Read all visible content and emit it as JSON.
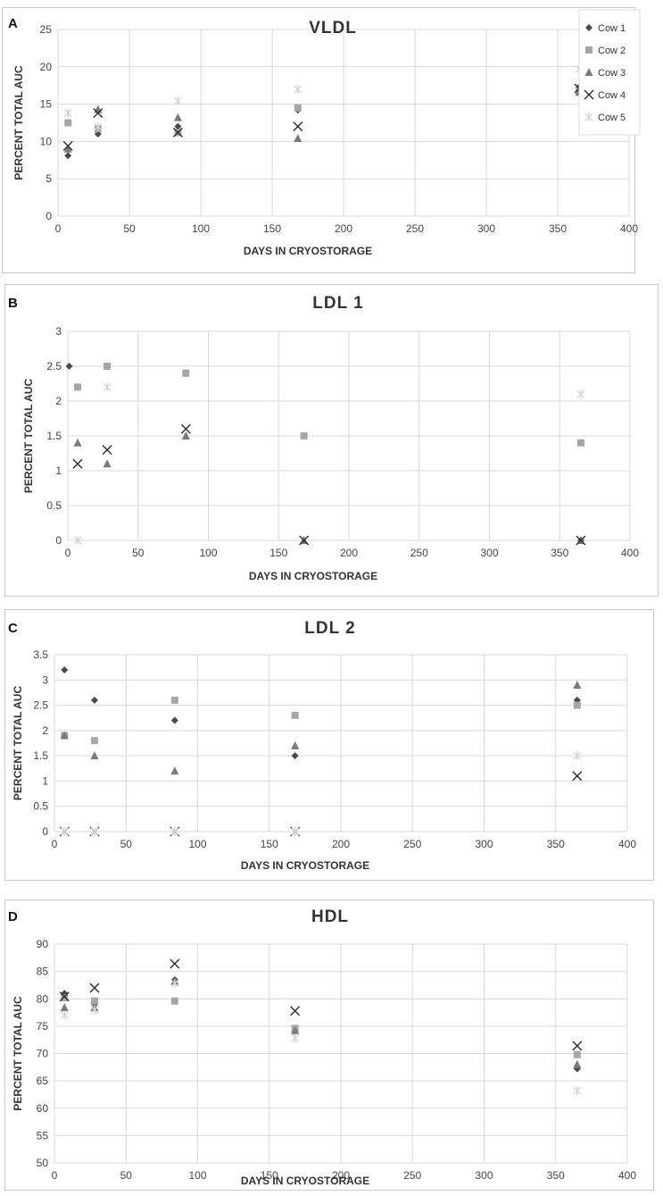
{
  "panels": {
    "a": "A",
    "b": "B",
    "c": "C",
    "d": "D"
  },
  "legend": {
    "entries": [
      "Cow 1",
      "Cow 2",
      "Cow 3",
      "Cow 4",
      "Cow 5"
    ]
  },
  "colors": {
    "cow1": "#4a4a4a",
    "cow2": "#a6a6a6",
    "cow3": "#7a7a7a",
    "cow4": "#2b2b2b",
    "cow5": "#d4d4d4",
    "grid": "#d9d9d9",
    "axis_text": "#444444"
  },
  "chart_data": [
    {
      "type": "scatter",
      "title": "VLDL",
      "xlabel": "DAYS IN CRYOSTORAGE",
      "ylabel": "PERCENT TOTAL AUC",
      "xlim": [
        0,
        400
      ],
      "ylim": [
        0,
        25
      ],
      "xticks": [
        0,
        50,
        100,
        150,
        200,
        250,
        300,
        350,
        400
      ],
      "yticks": [
        0,
        5,
        10,
        15,
        20,
        25
      ],
      "xtick_labels": [
        "0",
        "50",
        "100",
        "150",
        "200",
        "250",
        "300",
        "350",
        "400"
      ],
      "ytick_labels": [
        "0",
        "5",
        "10",
        "15",
        "20",
        "25"
      ],
      "legend": true,
      "series": [
        {
          "name": "Cow 1",
          "marker": "diamond",
          "points": [
            [
              7,
              8.1
            ],
            [
              28,
              11.0
            ],
            [
              84,
              12.0
            ],
            [
              168,
              14.2
            ],
            [
              365,
              17.3
            ]
          ]
        },
        {
          "name": "Cow 2",
          "marker": "square",
          "points": [
            [
              7,
              12.5
            ],
            [
              28,
              11.7
            ],
            [
              84,
              11.2
            ],
            [
              168,
              14.5
            ],
            [
              365,
              16.8
            ]
          ]
        },
        {
          "name": "Cow 3",
          "marker": "triangle",
          "points": [
            [
              7,
              9.0
            ],
            [
              28,
              14.3
            ],
            [
              84,
              13.2
            ],
            [
              168,
              10.4
            ],
            [
              365,
              16.6
            ]
          ]
        },
        {
          "name": "Cow 4",
          "marker": "x",
          "points": [
            [
              7,
              9.4
            ],
            [
              28,
              13.8
            ],
            [
              84,
              11.2
            ],
            [
              168,
              12.0
            ],
            [
              365,
              17.1
            ]
          ]
        },
        {
          "name": "Cow 5",
          "marker": "star",
          "points": [
            [
              7,
              13.8
            ],
            [
              28,
              12.0
            ],
            [
              84,
              15.4
            ],
            [
              168,
              17.0
            ],
            [
              365,
              19.7
            ]
          ]
        }
      ]
    },
    {
      "type": "scatter",
      "title": "LDL 1",
      "xlabel": "DAYS IN CRYOSTORAGE",
      "ylabel": "PERCENT TOTAL AUC",
      "xlim": [
        0,
        400
      ],
      "ylim": [
        0,
        3
      ],
      "xticks": [
        0,
        50,
        100,
        150,
        200,
        250,
        300,
        350,
        400
      ],
      "yticks": [
        0,
        0.5,
        1,
        1.5,
        2,
        2.5,
        3
      ],
      "xtick_labels": [
        "0",
        "50",
        "100",
        "150",
        "200",
        "250",
        "300",
        "350",
        "400"
      ],
      "ytick_labels": [
        "0",
        "0.5",
        "1",
        "1.5",
        "2",
        "2.5",
        "3"
      ],
      "legend": false,
      "series": [
        {
          "name": "Cow 1",
          "marker": "diamond",
          "points": [
            [
              1,
              2.5
            ],
            [
              365,
              0
            ]
          ]
        },
        {
          "name": "Cow 2",
          "marker": "square",
          "points": [
            [
              7,
              2.2
            ],
            [
              28,
              2.5
            ],
            [
              84,
              2.4
            ],
            [
              168,
              1.5
            ],
            [
              365,
              1.4
            ]
          ]
        },
        {
          "name": "Cow 3",
          "marker": "triangle",
          "points": [
            [
              7,
              1.4
            ],
            [
              28,
              1.1
            ],
            [
              84,
              1.5
            ],
            [
              168,
              0
            ],
            [
              365,
              0
            ]
          ]
        },
        {
          "name": "Cow 4",
          "marker": "x",
          "points": [
            [
              7,
              1.1
            ],
            [
              28,
              1.3
            ],
            [
              84,
              1.6
            ],
            [
              168,
              0
            ],
            [
              365,
              0
            ]
          ]
        },
        {
          "name": "Cow 5",
          "marker": "star",
          "points": [
            [
              7,
              0
            ],
            [
              28,
              2.2
            ],
            [
              365,
              2.1
            ]
          ]
        }
      ]
    },
    {
      "type": "scatter",
      "title": "LDL 2",
      "xlabel": "DAYS IN CRYOSTORAGE",
      "ylabel": "PERCENT TOTAL AUC",
      "xlim": [
        0,
        400
      ],
      "ylim": [
        0,
        3.5
      ],
      "xticks": [
        0,
        50,
        100,
        150,
        200,
        250,
        300,
        350,
        400
      ],
      "yticks": [
        0,
        0.5,
        1,
        1.5,
        2,
        2.5,
        3,
        3.5
      ],
      "xtick_labels": [
        "0",
        "50",
        "100",
        "150",
        "200",
        "250",
        "300",
        "350",
        "400"
      ],
      "ytick_labels": [
        "0",
        "0.5",
        "1",
        "1.5",
        "2",
        "2.5",
        "3",
        "3.5"
      ],
      "legend": false,
      "series": [
        {
          "name": "Cow 1",
          "marker": "diamond",
          "points": [
            [
              7,
              3.2
            ],
            [
              28,
              2.6
            ],
            [
              84,
              2.2
            ],
            [
              168,
              1.5
            ],
            [
              365,
              2.6
            ]
          ]
        },
        {
          "name": "Cow 2",
          "marker": "square",
          "points": [
            [
              7,
              1.9
            ],
            [
              28,
              1.8
            ],
            [
              84,
              2.6
            ],
            [
              168,
              2.3
            ],
            [
              365,
              2.5
            ]
          ]
        },
        {
          "name": "Cow 3",
          "marker": "triangle",
          "points": [
            [
              7,
              1.9
            ],
            [
              28,
              1.5
            ],
            [
              84,
              1.2
            ],
            [
              168,
              1.7
            ],
            [
              365,
              2.9
            ]
          ]
        },
        {
          "name": "Cow 4",
          "marker": "x",
          "points": [
            [
              7,
              0
            ],
            [
              28,
              0
            ],
            [
              84,
              0
            ],
            [
              168,
              0
            ],
            [
              365,
              1.1
            ]
          ]
        },
        {
          "name": "Cow 5",
          "marker": "star",
          "points": [
            [
              7,
              0
            ],
            [
              28,
              0
            ],
            [
              84,
              0
            ],
            [
              168,
              0
            ],
            [
              365,
              1.5
            ]
          ]
        }
      ]
    },
    {
      "type": "scatter",
      "title": "HDL",
      "xlabel": "DAYS IN CRYOSTORAGE",
      "ylabel": "PERCENT TOTAL AUC",
      "xlim": [
        0,
        400
      ],
      "ylim": [
        50,
        90
      ],
      "xticks": [
        0,
        50,
        100,
        150,
        200,
        250,
        300,
        350,
        400
      ],
      "yticks": [
        50,
        55,
        60,
        65,
        70,
        75,
        80,
        85,
        90
      ],
      "xtick_labels": [
        "0",
        "50",
        "100",
        "150",
        "200",
        "250",
        "300",
        "350",
        "400"
      ],
      "ytick_labels": [
        "50",
        "55",
        "60",
        "65",
        "70",
        "75",
        "80",
        "85",
        "90"
      ],
      "legend": false,
      "series": [
        {
          "name": "Cow 1",
          "marker": "diamond",
          "points": [
            [
              7,
              81.0
            ],
            [
              28,
              79.0
            ],
            [
              84,
              83.5
            ],
            [
              168,
              74.0
            ],
            [
              365,
              67.2
            ]
          ]
        },
        {
          "name": "Cow 2",
          "marker": "square",
          "points": [
            [
              7,
              80.2
            ],
            [
              28,
              79.6
            ],
            [
              84,
              79.6
            ],
            [
              168,
              74.6
            ],
            [
              365,
              69.8
            ]
          ]
        },
        {
          "name": "Cow 3",
          "marker": "triangle",
          "points": [
            [
              7,
              78.4
            ],
            [
              28,
              78.4
            ],
            [
              84,
              83.2
            ],
            [
              168,
              74.2
            ],
            [
              365,
              68.0
            ]
          ]
        },
        {
          "name": "Cow 4",
          "marker": "x",
          "points": [
            [
              7,
              80.4
            ],
            [
              28,
              82.0
            ],
            [
              84,
              86.4
            ],
            [
              168,
              77.8
            ],
            [
              365,
              71.4
            ]
          ]
        },
        {
          "name": "Cow 5",
          "marker": "star",
          "points": [
            [
              7,
              77.0
            ],
            [
              28,
              78.0
            ],
            [
              84,
              82.8
            ],
            [
              168,
              72.8
            ],
            [
              365,
              63.2
            ]
          ]
        }
      ]
    }
  ]
}
